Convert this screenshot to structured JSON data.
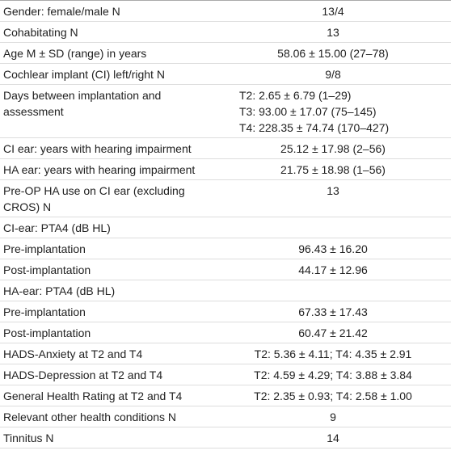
{
  "table": {
    "rows": [
      [
        "Gender: female/male N",
        "13/4"
      ],
      [
        "Cohabitating N",
        "13"
      ],
      [
        "Age M ± SD (range) in years",
        "58.06 ± 15.00 (27–78)"
      ],
      [
        "Cochlear implant (CI) left/right N",
        "9/8"
      ],
      [
        "Days between implantation and assessment",
        [
          "T2: 2.65 ± 6.79 (1–29)",
          "T3: 93.00 ± 17.07 (75–145)",
          "T4: 228.35 ± 74.74 (170–427)"
        ]
      ],
      [
        "CI ear: years with hearing impairment",
        "25.12 ± 17.98 (2–56)"
      ],
      [
        "HA ear: years with hearing impairment",
        "21.75 ± 18.98 (1–56)"
      ],
      [
        "Pre-OP HA use on CI ear (excluding CROS) N",
        "13"
      ],
      [
        "CI-ear: PTA4 (dB HL)",
        null
      ],
      [
        "Pre-implantation",
        "96.43 ± 16.20"
      ],
      [
        "Post-implantation",
        "44.17 ± 12.96"
      ],
      [
        "HA-ear: PTA4 (dB HL)",
        null
      ],
      [
        "Pre-implantation",
        "67.33 ± 17.43"
      ],
      [
        "Post-implantation",
        "60.47 ± 21.42"
      ],
      [
        "HADS-Anxiety at T2 and T4",
        "T2: 5.36 ± 4.11; T4: 4.35 ± 2.91"
      ],
      [
        "HADS-Depression at T2 and T4",
        "T2: 4.59 ± 4.29; T4: 3.88 ± 3.84"
      ],
      [
        "General Health Rating at T2 and T4",
        "T2: 2.35 ± 0.93; T4: 2.58 ± 1.00"
      ],
      [
        "Relevant other health conditions N",
        "9"
      ],
      [
        "Tinnitus N",
        "14"
      ]
    ]
  }
}
